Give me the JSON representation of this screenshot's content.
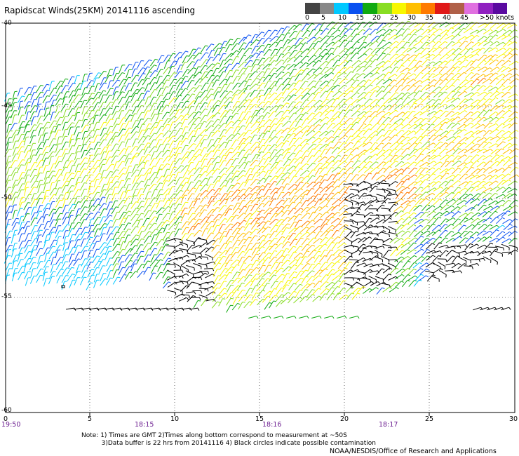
{
  "title": "Rapidscat Winds(25KM) 20141116 ascending",
  "legend": {
    "colors": [
      "#444444",
      "#888888",
      "#00c8ff",
      "#0a50f0",
      "#10aa10",
      "#88dd22",
      "#f7f700",
      "#ffbf00",
      "#ff7a00",
      "#e01818",
      "#b06048",
      "#e070e0",
      "#9020c0",
      "#5a0aa0"
    ],
    "labels": [
      "0",
      "5",
      "10",
      "15",
      "20",
      "25",
      "30",
      "35",
      "40",
      "45",
      ">50 knots"
    ]
  },
  "y_axis": {
    "ticks": [
      "-40",
      "-45",
      "-50",
      "-55",
      "-60"
    ]
  },
  "x_axis": {
    "ticks": [
      "0",
      "5",
      "10",
      "15",
      "20",
      "25",
      "30"
    ],
    "range": [
      0,
      30
    ]
  },
  "time_labels": [
    "19:50",
    "18:15",
    "18:16",
    "18:17"
  ],
  "notes": {
    "line1": "Note: 1) Times are GMT 2)Times along bottom correspond to measurement at ~50S",
    "line2": "3)Data buffer is 22 hrs from 20141116 4) Black circles indicate possible contamination"
  },
  "credit": "NOAA/NESDIS/Office of Research and Applications",
  "map_data": {
    "type": "wind-barb-swath",
    "lon_range": [
      0,
      30
    ],
    "lat_range": [
      -40,
      -60
    ],
    "grid": true,
    "contamination_color": "#000000"
  }
}
